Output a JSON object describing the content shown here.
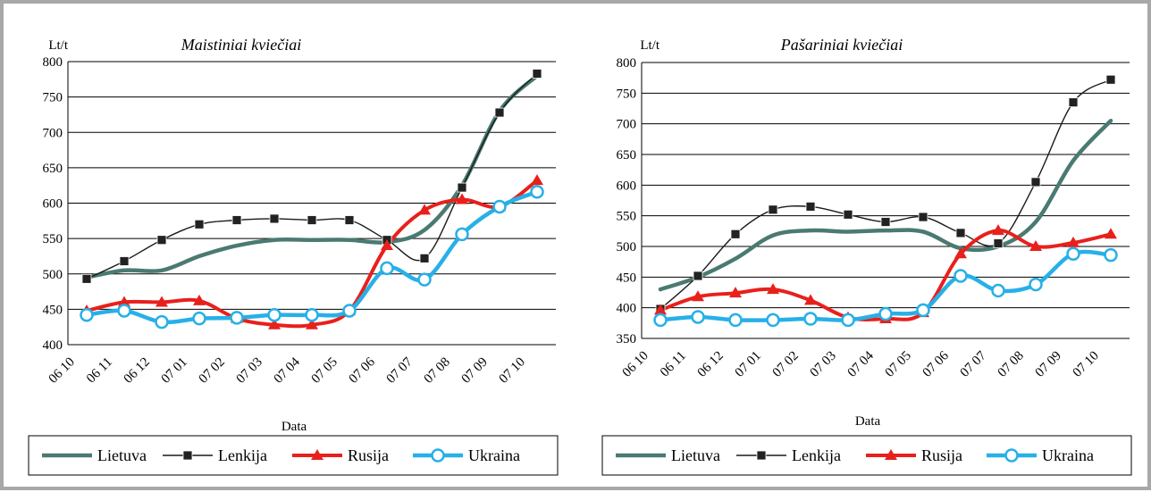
{
  "chart_data": [
    {
      "type": "line",
      "title": "Maistiniai kviečiai",
      "ylabel": "Lt/t",
      "xlabel": "Data",
      "ylim": [
        400,
        800
      ],
      "yticks": [
        400,
        450,
        500,
        550,
        600,
        650,
        700,
        750,
        800
      ],
      "categories": [
        "06 10",
        "06 11",
        "06 12",
        "07 01",
        "07 02",
        "07 03",
        "07 04",
        "07 05",
        "07 06",
        "07 07",
        "07 08",
        "07 09",
        "07 10"
      ],
      "grid": true,
      "legend_position": "bottom",
      "series": [
        {
          "name": "Lietuva",
          "marker": "none",
          "color": "#4a7a72",
          "values": [
            495,
            505,
            505,
            525,
            540,
            548,
            548,
            548,
            545,
            562,
            625,
            730,
            780
          ]
        },
        {
          "name": "Lenkija",
          "marker": "square",
          "color": "#1a1a1a",
          "values": [
            493,
            518,
            548,
            570,
            576,
            578,
            576,
            576,
            548,
            522,
            622,
            728,
            783
          ]
        },
        {
          "name": "Rusija",
          "marker": "triangle",
          "color": "#e8201c",
          "values": [
            448,
            460,
            460,
            462,
            437,
            428,
            428,
            448,
            540,
            590,
            605,
            595,
            632
          ]
        },
        {
          "name": "Ukraina",
          "marker": "circle",
          "color": "#27b0e8",
          "values": [
            442,
            448,
            432,
            437,
            438,
            442,
            442,
            448,
            508,
            492,
            556,
            595,
            616
          ]
        }
      ]
    },
    {
      "type": "line",
      "title": "Pašariniai kviečiai",
      "ylabel": "Lt/t",
      "xlabel": "Data",
      "ylim": [
        350,
        800
      ],
      "yticks": [
        350,
        400,
        450,
        500,
        550,
        600,
        650,
        700,
        750,
        800
      ],
      "categories": [
        "06 10",
        "06 11",
        "06 12",
        "07 01",
        "07 02",
        "07 03",
        "07 04",
        "07 05",
        "07 06",
        "07 07",
        "07 08",
        "07 09",
        "07 10"
      ],
      "grid": true,
      "legend_position": "bottom",
      "series": [
        {
          "name": "Lietuva",
          "marker": "none",
          "color": "#4a7a72",
          "values": [
            430,
            450,
            480,
            518,
            526,
            524,
            526,
            524,
            497,
            500,
            540,
            640,
            705
          ]
        },
        {
          "name": "Lenkija",
          "marker": "square",
          "color": "#1a1a1a",
          "values": [
            398,
            452,
            520,
            560,
            565,
            552,
            540,
            548,
            522,
            505,
            605,
            735,
            772
          ]
        },
        {
          "name": "Rusija",
          "marker": "triangle",
          "color": "#e8201c",
          "values": [
            396,
            418,
            424,
            430,
            412,
            384,
            382,
            392,
            488,
            526,
            500,
            506,
            520
          ]
        },
        {
          "name": "Ukraina",
          "marker": "circle",
          "color": "#27b0e8",
          "values": [
            380,
            385,
            380,
            380,
            382,
            380,
            390,
            396,
            452,
            428,
            438,
            488,
            486
          ]
        }
      ]
    }
  ]
}
